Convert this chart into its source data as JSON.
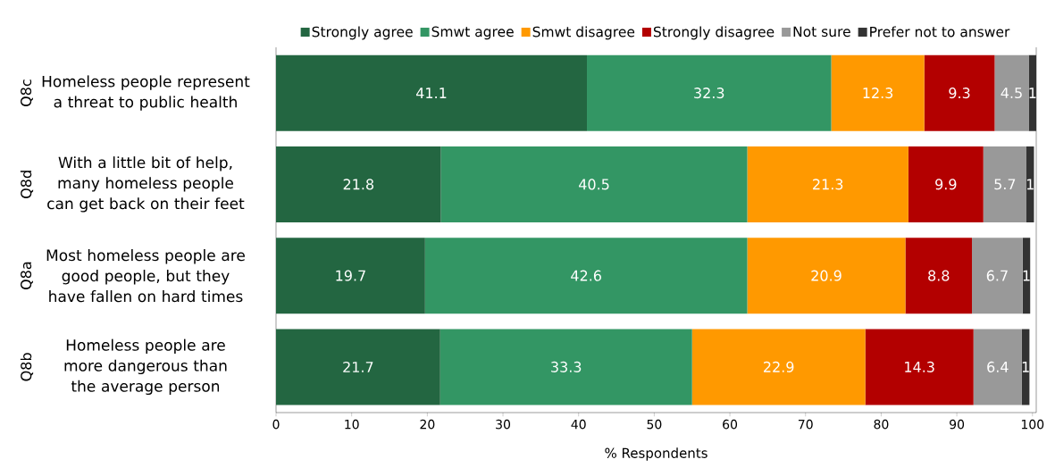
{
  "chart_data": {
    "type": "bar",
    "orientation": "horizontal",
    "stacked": true,
    "data_labels": true,
    "legend": "top",
    "grid": false,
    "xlabel": "% Respondents",
    "categories": [
      "Homeless people represent a threat to public health",
      "With a little bit of help, many homeless people can get back on their feet",
      "Most homeless people are good people, but they have fallen on hard times",
      "Homeless people are more dangerous than the average person"
    ],
    "annotations": [
      "Q8c",
      "Q8d",
      "Q8a",
      "Q8b"
    ],
    "xlim": [
      0,
      100.5
    ],
    "xticks": [
      0,
      10,
      20,
      30,
      40,
      50,
      60,
      70,
      80,
      90,
      100
    ],
    "series": [
      {
        "name": "Strongly agree",
        "color": "#236641",
        "values": [
          41.1,
          21.8,
          19.7,
          21.7
        ]
      },
      {
        "name": "Smwt agree",
        "color": "#339664",
        "values": [
          32.3,
          40.5,
          42.6,
          33.3
        ]
      },
      {
        "name": "Smwt disagree",
        "color": "#ff9900",
        "values": [
          12.3,
          21.3,
          20.9,
          22.9
        ]
      },
      {
        "name": "Strongly disagree",
        "color": "#b30000",
        "values": [
          9.3,
          9.9,
          8.8,
          14.3
        ]
      },
      {
        "name": "Not sure",
        "color": "#999999",
        "values": [
          4.5,
          5.7,
          6.7,
          6.4
        ]
      },
      {
        "name": "Prefer not to answer",
        "color": "#333333",
        "values": [
          1,
          1,
          1,
          1
        ]
      }
    ]
  }
}
